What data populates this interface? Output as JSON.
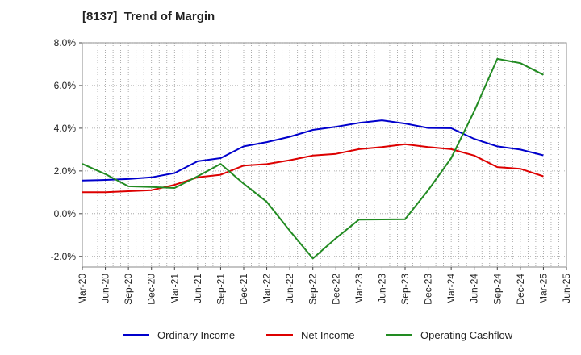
{
  "chart_data": {
    "type": "line",
    "title": "[8137]  Trend of Margin",
    "xlabel": "",
    "ylabel": "",
    "categories": [
      "Mar-20",
      "Jun-20",
      "Sep-20",
      "Dec-20",
      "Mar-21",
      "Jun-21",
      "Sep-21",
      "Dec-21",
      "Mar-22",
      "Jun-22",
      "Sep-22",
      "Dec-22",
      "Mar-23",
      "Jun-23",
      "Sep-23",
      "Dec-23",
      "Mar-24",
      "Jun-24",
      "Sep-24",
      "Dec-24",
      "Mar-25",
      "Jun-25"
    ],
    "y_ticks": [
      "8.0%",
      "6.0%",
      "4.0%",
      "2.0%",
      "0.0%",
      "-2.0%"
    ],
    "y_tick_values": [
      8,
      6,
      4,
      2,
      0,
      -2
    ],
    "ylim": [
      -2.5,
      8.0
    ],
    "grid": true,
    "legend_position": "bottom",
    "series": [
      {
        "name": "Ordinary Income",
        "color": "#0000cc",
        "values": [
          1.55,
          1.58,
          1.62,
          1.7,
          1.9,
          2.45,
          2.6,
          3.15,
          3.35,
          3.6,
          3.92,
          4.07,
          4.25,
          4.37,
          4.22,
          4.01,
          4.0,
          3.5,
          3.15,
          3.0,
          2.73,
          null
        ]
      },
      {
        "name": "Net Income",
        "color": "#dd0000",
        "values": [
          1.0,
          1.0,
          1.05,
          1.1,
          1.35,
          1.7,
          1.82,
          2.25,
          2.32,
          2.5,
          2.72,
          2.8,
          3.02,
          3.12,
          3.25,
          3.12,
          3.02,
          2.72,
          2.18,
          2.1,
          1.75,
          null
        ]
      },
      {
        "name": "Operating Cashflow",
        "color": "#228b22",
        "values": [
          2.33,
          1.85,
          1.28,
          1.25,
          1.2,
          1.75,
          2.33,
          1.4,
          0.55,
          -0.8,
          -2.1,
          -1.15,
          -0.28,
          -0.27,
          -0.26,
          1.1,
          2.6,
          4.8,
          7.25,
          7.05,
          6.5,
          null
        ]
      }
    ]
  }
}
